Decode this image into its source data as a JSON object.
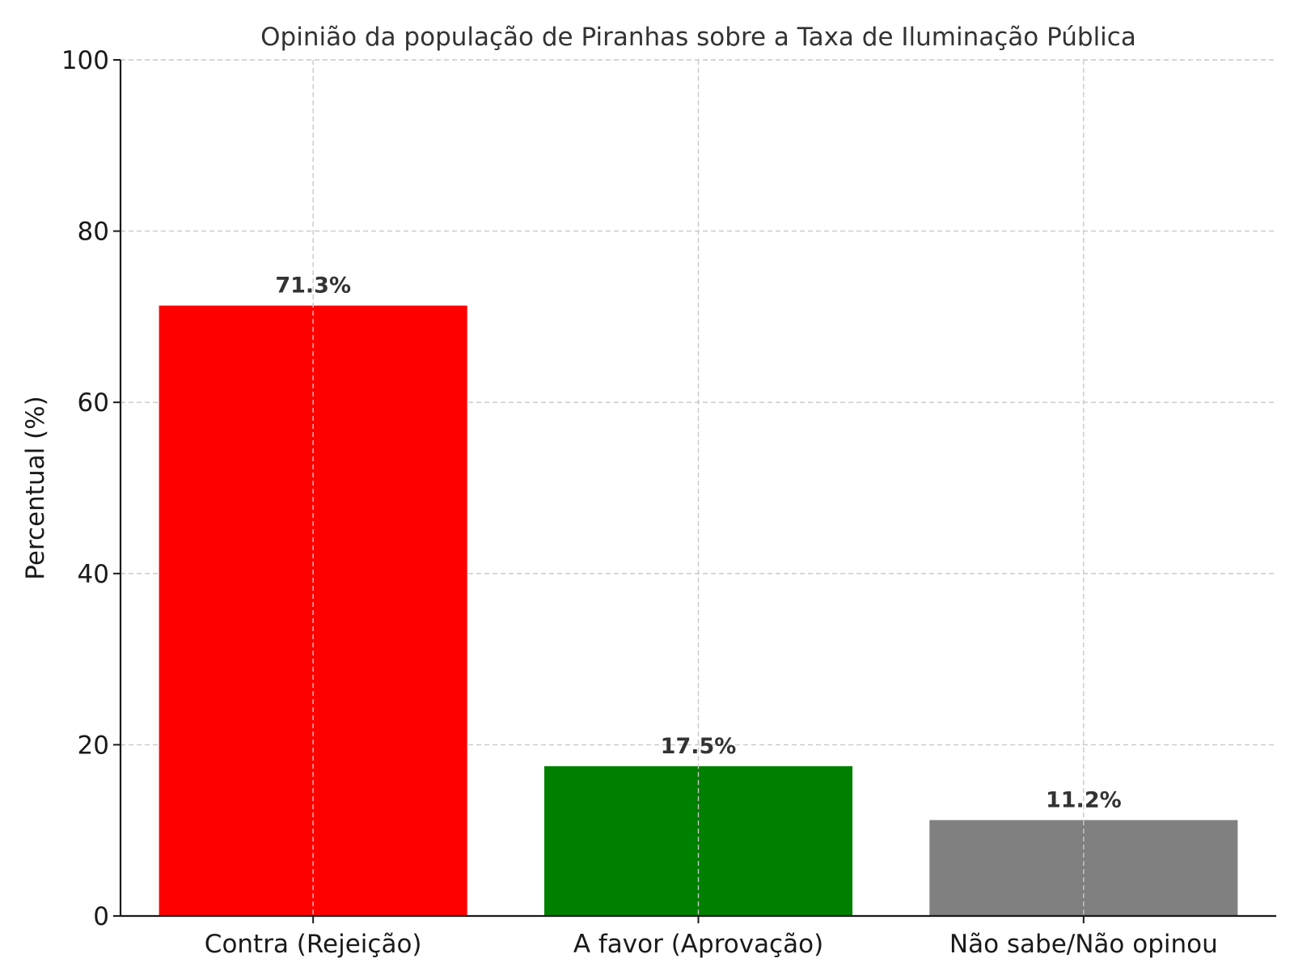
{
  "chart_data": {
    "type": "bar",
    "title": "Opinião da população de Piranhas sobre a Taxa de Iluminação Pública",
    "xlabel": "",
    "ylabel": "Percentual (%)",
    "categories": [
      "Contra (Rejeição)",
      "A favor (Aprovação)",
      "Não sabe/Não opinou"
    ],
    "values": [
      71.3,
      17.5,
      11.2
    ],
    "data_labels": [
      "71.3%",
      "17.5%",
      "11.2%"
    ],
    "colors": [
      "#ff0000",
      "#008000",
      "#808080"
    ],
    "ylim": [
      0,
      100
    ],
    "yticks": [
      0,
      20,
      40,
      60,
      80,
      100
    ],
    "ytick_labels": [
      "0",
      "20",
      "40",
      "60",
      "80",
      "100"
    ],
    "grid": true,
    "legend": "none"
  }
}
